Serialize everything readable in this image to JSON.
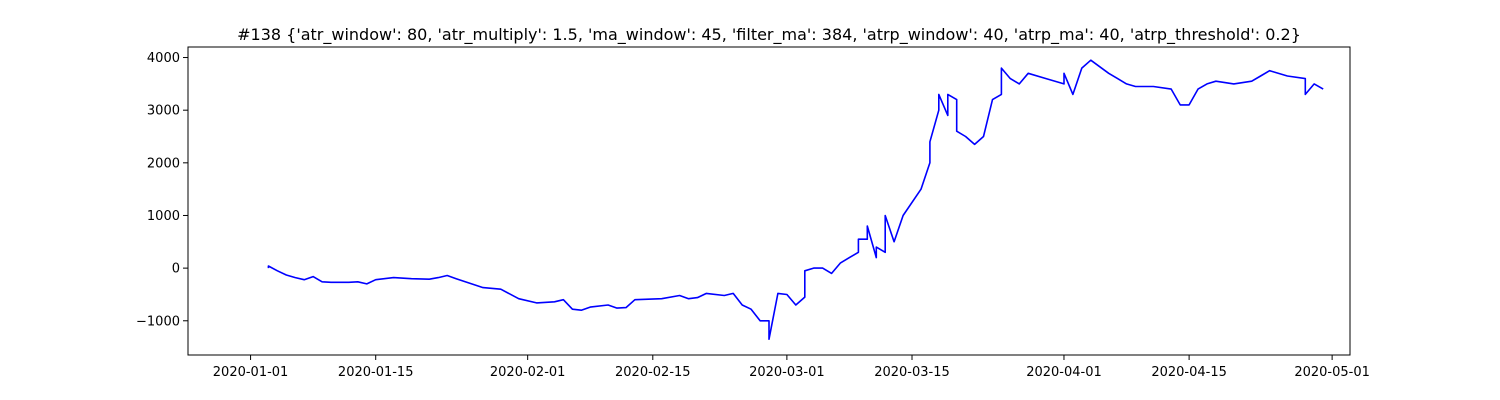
{
  "chart_data": {
    "type": "line",
    "title": "#138 {'atr_window': 80, 'atr_multiply': 1.5, 'ma_window': 45, 'filter_ma': 384, 'atrp_window': 40, 'atrp_ma': 40, 'atrp_threshold': 0.2}",
    "xlabel": "",
    "ylabel": "",
    "xlim": [
      "2019-12-25",
      "2020-05-03"
    ],
    "ylim": [
      -1650,
      4200
    ],
    "grid": false,
    "color": "#0000ff",
    "x_ticks": [
      "2020-01-01",
      "2020-01-15",
      "2020-02-01",
      "2020-02-15",
      "2020-03-01",
      "2020-03-15",
      "2020-04-01",
      "2020-04-15",
      "2020-05-01"
    ],
    "y_ticks": [
      -1000,
      0,
      1000,
      2000,
      3000,
      4000
    ],
    "y_tick_labels": [
      "−1000",
      "0",
      "1000",
      "2000",
      "3000",
      "4000"
    ],
    "x": [
      "2020-01-03",
      "2020-01-03",
      "2020-01-04",
      "2020-01-05",
      "2020-01-06",
      "2020-01-07",
      "2020-01-08",
      "2020-01-09",
      "2020-01-10",
      "2020-01-12",
      "2020-01-13",
      "2020-01-14",
      "2020-01-15",
      "2020-01-17",
      "2020-01-19",
      "2020-01-21",
      "2020-01-22",
      "2020-01-23",
      "2020-01-24",
      "2020-01-27",
      "2020-01-29",
      "2020-01-31",
      "2020-02-02",
      "2020-02-04",
      "2020-02-05",
      "2020-02-06",
      "2020-02-07",
      "2020-02-08",
      "2020-02-10",
      "2020-02-11",
      "2020-02-12",
      "2020-02-13",
      "2020-02-16",
      "2020-02-18",
      "2020-02-19",
      "2020-02-20",
      "2020-02-21",
      "2020-02-23",
      "2020-02-24",
      "2020-02-25",
      "2020-02-26",
      "2020-02-27",
      "2020-02-28",
      "2020-02-28",
      "2020-02-29",
      "2020-03-01",
      "2020-03-02",
      "2020-03-03",
      "2020-03-03",
      "2020-03-04",
      "2020-03-05",
      "2020-03-06",
      "2020-03-07",
      "2020-03-08",
      "2020-03-09",
      "2020-03-09",
      "2020-03-10",
      "2020-03-10",
      "2020-03-11",
      "2020-03-11",
      "2020-03-12",
      "2020-03-12",
      "2020-03-13",
      "2020-03-14",
      "2020-03-16",
      "2020-03-17",
      "2020-03-17",
      "2020-03-18",
      "2020-03-18",
      "2020-03-19",
      "2020-03-19",
      "2020-03-20",
      "2020-03-20",
      "2020-03-21",
      "2020-03-22",
      "2020-03-23",
      "2020-03-24",
      "2020-03-25",
      "2020-03-25",
      "2020-03-26",
      "2020-03-27",
      "2020-03-28",
      "2020-03-30",
      "2020-04-01",
      "2020-04-01",
      "2020-04-02",
      "2020-04-03",
      "2020-04-04",
      "2020-04-06",
      "2020-04-07",
      "2020-04-08",
      "2020-04-09",
      "2020-04-11",
      "2020-04-13",
      "2020-04-14",
      "2020-04-15",
      "2020-04-16",
      "2020-04-17",
      "2020-04-18",
      "2020-04-20",
      "2020-04-22",
      "2020-04-23",
      "2020-04-24",
      "2020-04-26",
      "2020-04-28",
      "2020-04-28",
      "2020-04-29",
      "2020-04-30"
    ],
    "y": [
      0,
      40,
      -50,
      -130,
      -180,
      -220,
      -160,
      -260,
      -270,
      -270,
      -260,
      -300,
      -220,
      -180,
      -200,
      -210,
      -180,
      -140,
      -200,
      -370,
      -400,
      -580,
      -660,
      -640,
      -600,
      -780,
      -800,
      -740,
      -700,
      -760,
      -750,
      -600,
      -580,
      -520,
      -580,
      -560,
      -480,
      -520,
      -480,
      -700,
      -780,
      -1000,
      -1000,
      -1350,
      -480,
      -500,
      -700,
      -550,
      -50,
      0,
      0,
      -100,
      100,
      200,
      300,
      550,
      550,
      800,
      200,
      400,
      300,
      1000,
      500,
      1000,
      1500,
      2000,
      2400,
      3000,
      3300,
      2900,
      3300,
      3200,
      2600,
      2500,
      2350,
      2500,
      3200,
      3300,
      3800,
      3600,
      3500,
      3700,
      3600,
      3500,
      3700,
      3300,
      3800,
      3950,
      3700,
      3600,
      3500,
      3450,
      3450,
      3400,
      3100,
      3100,
      3400,
      3500,
      3550,
      3500,
      3550,
      3650,
      3750,
      3650,
      3600,
      3300,
      3500,
      3400
    ]
  }
}
